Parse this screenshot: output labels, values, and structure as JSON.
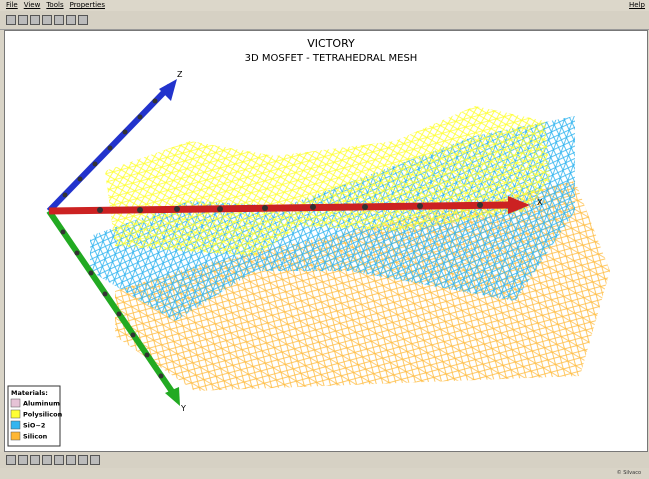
{
  "menu": {
    "items": [
      "File",
      "View",
      "Tools",
      "Properties"
    ],
    "help": "Help"
  },
  "header": {
    "title": "VICTORY",
    "subtitle": "3D MOSFET - TETRAHEDRAL MESH"
  },
  "axes": {
    "x": "X",
    "y": "Y",
    "z": "Z"
  },
  "legend": {
    "title": "Materials:",
    "items": [
      {
        "label": "Aluminum",
        "color": "#e6c3d6"
      },
      {
        "label": "Polysilicon",
        "color": "#ffff33"
      },
      {
        "label": "SiO~2",
        "color": "#33b5f0"
      },
      {
        "label": "Silicon",
        "color": "#ffb733"
      }
    ]
  },
  "status": {
    "text": "© Silvaco"
  }
}
